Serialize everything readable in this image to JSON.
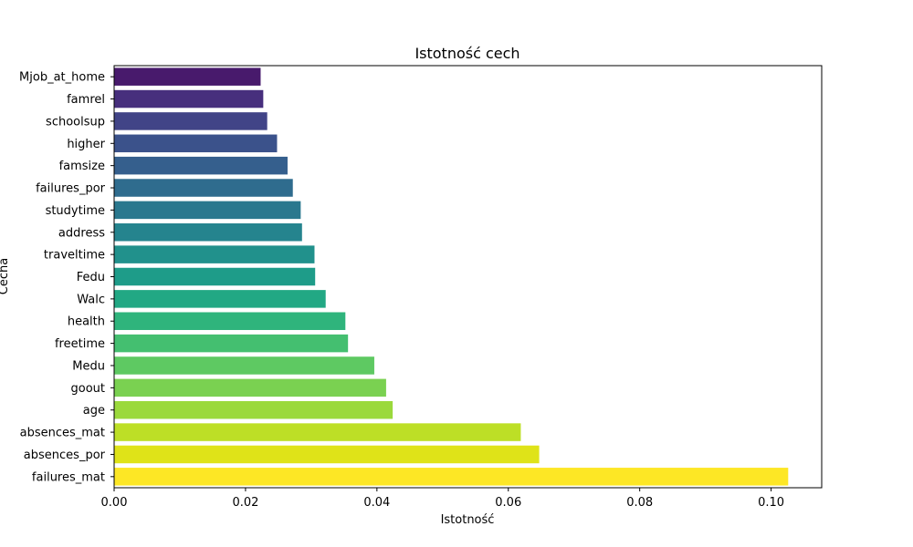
{
  "chart_data": {
    "type": "bar",
    "orientation": "horizontal",
    "title": "Istotność cech",
    "xlabel": "Istotność",
    "ylabel": "Cecha",
    "xlim": [
      0,
      0.1077
    ],
    "xticks": [
      "0.00",
      "0.02",
      "0.04",
      "0.06",
      "0.08",
      "0.10"
    ],
    "grid": false,
    "colormap": "viridis",
    "categories": [
      "Mjob_at_home",
      "famrel",
      "schoolsup",
      "higher",
      "famsize",
      "failures_por",
      "studytime",
      "address",
      "traveltime",
      "Fedu",
      "Walc",
      "health",
      "freetime",
      "Medu",
      "goout",
      "age",
      "absences_mat",
      "absences_por",
      "failures_mat"
    ],
    "values": [
      0.0223,
      0.0227,
      0.0233,
      0.0248,
      0.0264,
      0.0272,
      0.0284,
      0.0286,
      0.0305,
      0.0306,
      0.0322,
      0.0352,
      0.0356,
      0.0396,
      0.0414,
      0.0424,
      0.0619,
      0.0647,
      0.1026
    ],
    "colors": [
      "#481a6c",
      "#472f7d",
      "#414487",
      "#3b528b",
      "#355f8d",
      "#2f6c8e",
      "#2a788e",
      "#25848e",
      "#21918c",
      "#1e9c89",
      "#22a884",
      "#2fb47c",
      "#44bf70",
      "#5ec962",
      "#7ad151",
      "#9bd93c",
      "#bddf26",
      "#dfe318",
      "#fde725"
    ]
  }
}
